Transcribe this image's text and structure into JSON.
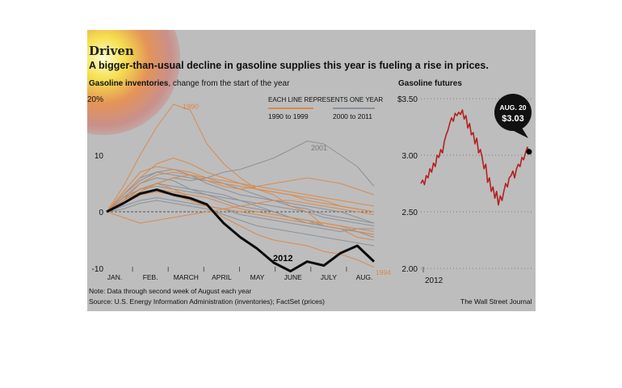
{
  "header": {
    "title": "Driven",
    "subtitle": "A bigger-than-usual decline in gasoline supplies this year is fueling a rise in prices."
  },
  "footer": {
    "note": "Note: Data through second week of August each year",
    "source": "Source: U.S. Energy Information Administration (inventories); FactSet (prices)",
    "credit": "The Wall Street Journal"
  },
  "colors": {
    "panel_bg": "#bdbdbd",
    "series_1990s": "#d9894a",
    "series_2000s": "#8a8f99",
    "series_2012": "#000000",
    "futures_line": "#b51f1f",
    "callout": "#111111"
  },
  "chart_data": [
    {
      "type": "line",
      "title_bold": "Gasoline inventories",
      "title_rest": ", change from the start of the year",
      "y_unit": "%",
      "ylim": [
        -10,
        20
      ],
      "y_ticks": [
        "20%",
        "10",
        "0",
        "-10"
      ],
      "x_ticks": [
        "JAN.",
        "FEB.",
        "MARCH",
        "APRIL",
        "MAY",
        "JUNE",
        "JULY",
        "AUG."
      ],
      "grid": false,
      "legend": {
        "heading": "EACH LINE REPRESENTS ONE YEAR",
        "entries": [
          "1990 to 1999",
          "2000 to 2011"
        ]
      },
      "annotations": [
        "1990",
        "2001",
        "1994",
        "2012"
      ],
      "x": [
        0,
        2,
        4,
        6,
        8,
        10,
        12,
        14,
        16,
        18,
        20,
        22,
        24,
        26,
        28,
        30,
        32
      ],
      "series": [
        {
          "name": "2012",
          "values": [
            0,
            1.5,
            3.2,
            3.9,
            3.0,
            2.4,
            1.3,
            -2.0,
            -4.5,
            -6.5,
            -9.0,
            -10.5,
            -8.8,
            -9.5,
            -7.3,
            -6.0,
            -8.8
          ]
        },
        {
          "name": "1990",
          "values": [
            0,
            4.5,
            10.0,
            15.0,
            19.0,
            18.0,
            12.0,
            8.5,
            6.0,
            4.0,
            3.0,
            1.0,
            0,
            -2.5,
            -3.0,
            -4.5,
            -5.0
          ]
        },
        {
          "name": "1994",
          "values": [
            0,
            2.0,
            4.0,
            5.0,
            4.0,
            2.5,
            1.0,
            -1.0,
            -2.5,
            -4.0,
            -5.0,
            -5.5,
            -6.0,
            -7.0,
            -7.5,
            -8.5,
            -9.8
          ]
        },
        {
          "name": "2001",
          "values": [
            0,
            2.0,
            4.0,
            5.0,
            6.0,
            5.5,
            6.0,
            7.0,
            7.5,
            8.5,
            9.5,
            11.0,
            12.5,
            12.0,
            10.0,
            8.0,
            4.5
          ]
        },
        {
          "values": [
            0,
            3.0,
            6.0,
            8.5,
            9.5,
            8.5,
            7.0,
            6.0,
            5.0,
            4.0,
            3.5,
            3.0,
            2.5,
            2.0,
            1.0,
            0.5,
            0
          ]
        },
        {
          "values": [
            0,
            2.5,
            5.0,
            6.0,
            5.5,
            4.0,
            3.0,
            2.0,
            1.0,
            0.5,
            0,
            -1.0,
            -1.5,
            -2.5,
            -3.0,
            -3.5,
            -4.0
          ]
        },
        {
          "values": [
            0,
            1.5,
            3.0,
            4.0,
            3.5,
            3.0,
            2.5,
            1.5,
            0.5,
            0,
            -0.5,
            -1.0,
            -1.5,
            -2.0,
            -2.5,
            -3.0,
            -3.5
          ]
        },
        {
          "values": [
            0,
            3.0,
            5.5,
            7.0,
            7.5,
            6.5,
            5.0,
            4.0,
            3.0,
            2.5,
            2.0,
            1.0,
            0.5,
            -0.5,
            -1.0,
            -1.5,
            -2.0
          ]
        },
        {
          "values": [
            0,
            -1.0,
            -2.0,
            -1.5,
            -1.0,
            -0.5,
            0,
            0.5,
            1.0,
            1.5,
            2.0,
            2.0,
            1.5,
            1.0,
            0.5,
            0,
            -0.5
          ]
        },
        {
          "values": [
            0,
            2.0,
            4.0,
            4.5,
            4.0,
            3.5,
            3.0,
            2.5,
            2.0,
            1.5,
            1.0,
            0.5,
            0,
            -1.0,
            -1.5,
            -2.0,
            -2.5
          ]
        },
        {
          "values": [
            0,
            3.5,
            7.0,
            8.0,
            7.5,
            7.0,
            6.0,
            5.0,
            4.5,
            4.0,
            3.5,
            3.0,
            2.0,
            1.5,
            1.0,
            0.5,
            0
          ]
        },
        {
          "values": [
            0,
            1.0,
            2.0,
            2.5,
            2.0,
            1.5,
            1.0,
            0.5,
            -0.5,
            -1.0,
            -1.5,
            -2.0,
            -2.5,
            -3.0,
            -3.5,
            -3.0,
            -3.0
          ]
        },
        {
          "values": [
            0,
            2.0,
            3.5,
            5.0,
            6.0,
            6.5,
            6.0,
            5.5,
            5.0,
            4.5,
            4.0,
            3.5,
            3.0,
            2.5,
            2.0,
            1.5,
            1.0
          ]
        },
        {
          "values": [
            0,
            2.5,
            4.0,
            5.0,
            4.5,
            4.0,
            3.5,
            3.0,
            2.0,
            1.0,
            0,
            -1.0,
            -2.0,
            -2.5,
            -3.0,
            -3.5,
            -4.5
          ]
        },
        {
          "values": [
            0,
            1.5,
            3.0,
            3.5,
            3.0,
            2.0,
            1.0,
            0.5,
            0,
            -0.5,
            -1.0,
            -1.5,
            -2.0,
            -2.0,
            -2.5,
            -3.5,
            -4.0
          ]
        },
        {
          "values": [
            0,
            3.0,
            6.0,
            7.0,
            6.5,
            6.0,
            5.5,
            5.0,
            4.0,
            3.0,
            2.0,
            1.5,
            1.0,
            0.5,
            0,
            -1.0,
            -2.0
          ]
        },
        {
          "values": [
            0,
            2.0,
            5.0,
            6.5,
            7.0,
            6.5,
            5.5,
            4.5,
            4.0,
            4.5,
            5.0,
            5.5,
            6.0,
            5.5,
            5.0,
            4.0,
            3.0
          ]
        },
        {
          "values": [
            0,
            0.5,
            1.5,
            2.0,
            1.5,
            1.0,
            0.5,
            -0.5,
            -1.5,
            -2.5,
            -3.0,
            -3.5,
            -4.0,
            -4.5,
            -5.0,
            -5.5,
            -6.0
          ]
        }
      ]
    },
    {
      "type": "line",
      "title": "Gasoline futures",
      "ylim": [
        2.0,
        3.5
      ],
      "y_ticks": [
        "$3.50",
        "3.00",
        "2.50",
        "2.00"
      ],
      "x_ticks": [
        "2012"
      ],
      "grid": false,
      "callout": {
        "date": "AUG. 20",
        "value": "$3.03"
      },
      "series": [
        {
          "name": "Gasoline futures",
          "values": [
            2.75,
            2.78,
            2.74,
            2.82,
            2.8,
            2.88,
            2.85,
            2.93,
            2.9,
            3.0,
            2.98,
            3.05,
            3.02,
            3.12,
            3.18,
            3.22,
            3.28,
            3.33,
            3.3,
            3.37,
            3.35,
            3.38,
            3.36,
            3.4,
            3.32,
            3.35,
            3.24,
            3.28,
            3.18,
            3.2,
            3.1,
            3.15,
            3.02,
            3.05,
            2.98,
            2.88,
            2.92,
            2.76,
            2.8,
            2.68,
            2.72,
            2.62,
            2.68,
            2.56,
            2.64,
            2.6,
            2.68,
            2.75,
            2.72,
            2.8,
            2.82,
            2.86,
            2.8,
            2.88,
            2.92,
            2.9,
            2.98,
            2.96,
            3.02,
            3.07,
            3.03
          ]
        }
      ]
    }
  ]
}
